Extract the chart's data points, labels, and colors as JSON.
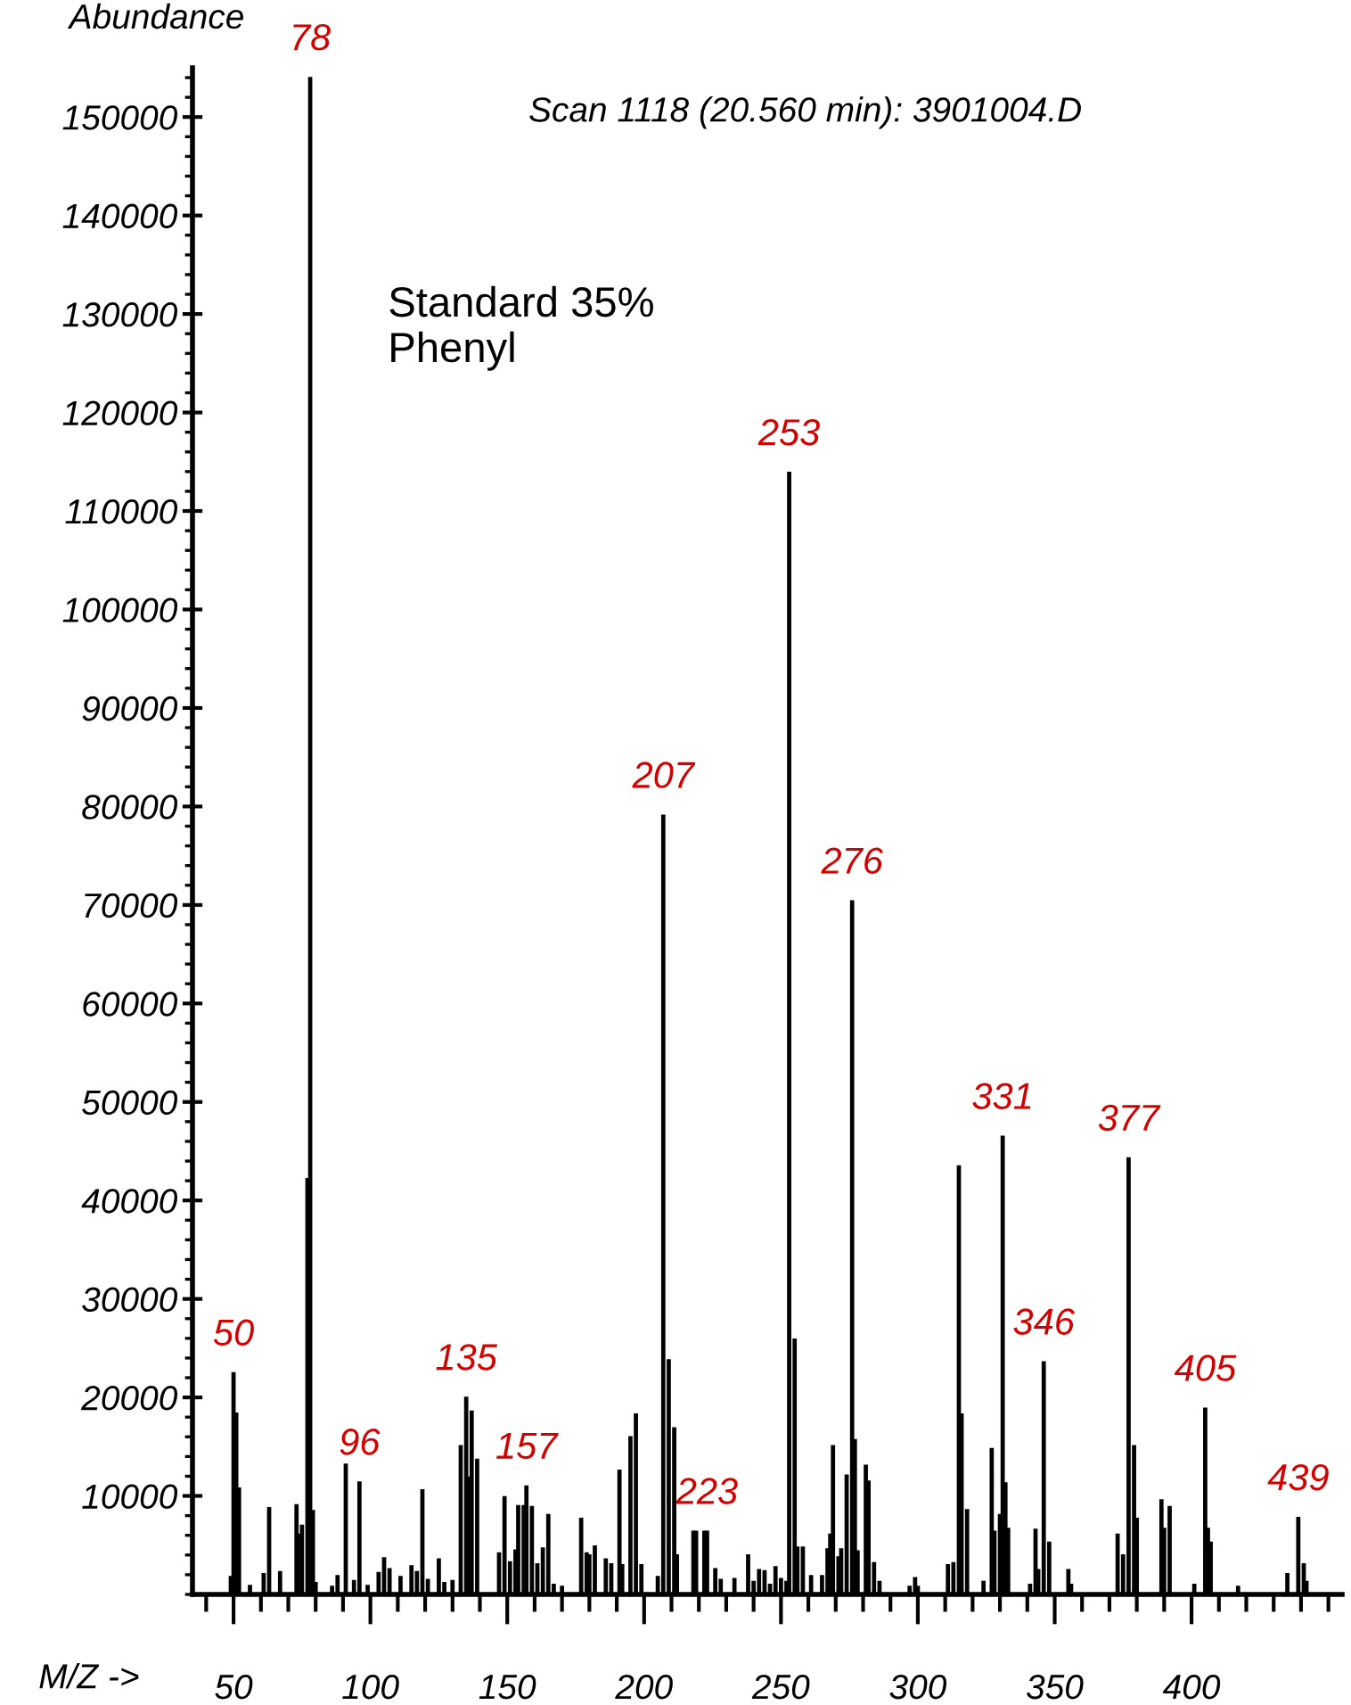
{
  "chart_data": {
    "type": "bar",
    "title": "Scan 1118 (20.560 min): 3901004.D",
    "xlabel": "M/Z ->",
    "ylabel": "Abundance",
    "x": [
      49,
      50,
      51,
      52,
      56,
      61,
      63,
      67,
      73,
      74,
      75,
      77,
      78,
      79,
      80,
      86,
      88,
      91,
      94,
      96,
      99,
      103,
      105,
      107,
      111,
      115,
      117,
      119,
      121,
      125,
      127,
      130,
      133,
      135,
      136,
      137,
      139,
      147,
      149,
      151,
      153,
      154,
      156,
      157,
      159,
      161,
      163,
      165,
      167,
      170,
      177,
      179,
      180,
      182,
      186,
      188,
      191,
      192,
      195,
      197,
      199,
      205,
      207,
      209,
      211,
      212,
      218,
      219,
      222,
      223,
      226,
      228,
      233,
      238,
      240,
      242,
      244,
      246,
      248,
      250,
      252,
      253,
      255,
      256,
      258,
      261,
      265,
      267,
      268,
      269,
      271,
      272,
      274,
      276,
      277,
      278,
      281,
      282,
      284,
      286,
      297,
      299,
      300,
      311,
      313,
      315,
      316,
      318,
      324,
      327,
      328,
      330,
      331,
      332,
      333,
      341,
      343,
      344,
      346,
      348,
      355,
      356,
      373,
      375,
      377,
      379,
      380,
      389,
      390,
      392,
      401,
      405,
      406,
      407,
      417,
      435,
      439,
      441,
      442
    ],
    "values": [
      1800,
      22500,
      18400,
      10800,
      900,
      2100,
      8800,
      2300,
      9100,
      6100,
      7000,
      42200,
      154000,
      8500,
      1200,
      800,
      1900,
      13200,
      1400,
      11400,
      900,
      2200,
      3700,
      2600,
      1800,
      2900,
      2300,
      10600,
      1500,
      3600,
      1200,
      1400,
      15100,
      20000,
      11900,
      18600,
      13700,
      4200,
      9900,
      3300,
      4500,
      9000,
      9000,
      11000,
      8900,
      3100,
      4700,
      8100,
      1000,
      800,
      7700,
      4200,
      4000,
      4900,
      3600,
      3100,
      12600,
      3000,
      16000,
      18300,
      3000,
      1800,
      79100,
      23800,
      16900,
      4000,
      6400,
      6400,
      6400,
      6400,
      2600,
      1500,
      1600,
      4000,
      1300,
      2500,
      2400,
      1000,
      2800,
      1600,
      1300,
      113900,
      25900,
      4800,
      4800,
      1900,
      1900,
      4600,
      6100,
      15100,
      3800,
      4600,
      12100,
      70400,
      15700,
      4400,
      13100,
      11500,
      3200,
      1300,
      800,
      1700,
      800,
      3000,
      3200,
      43500,
      18300,
      8600,
      1300,
      14800,
      6400,
      8100,
      46500,
      11300,
      6700,
      1000,
      6600,
      2500,
      23600,
      5300,
      2500,
      1000,
      6100,
      4000,
      44300,
      15100,
      7700,
      9600,
      6700,
      8900,
      1000,
      18900,
      6700,
      5300,
      800,
      2100,
      7800,
      3100,
      1300
    ],
    "color": "#000000",
    "xlim": [
      35,
      455
    ],
    "ylim": [
      0,
      155000
    ],
    "xticks": [
      50,
      100,
      150,
      200,
      250,
      300,
      350,
      400
    ],
    "yticks": [
      10000,
      20000,
      30000,
      40000,
      50000,
      60000,
      70000,
      80000,
      90000,
      100000,
      110000,
      120000,
      130000,
      140000,
      150000
    ],
    "grid": false,
    "annotations": [
      "Standard 35%\nPhenyl",
      {
        "text": "50",
        "x": 50,
        "y": 22500
      },
      {
        "text": "78",
        "x": 78,
        "y": 154000
      },
      {
        "text": "96",
        "x": 96,
        "y": 11400
      },
      {
        "text": "135",
        "x": 135,
        "y": 20000
      },
      {
        "text": "157",
        "x": 157,
        "y": 11000
      },
      {
        "text": "207",
        "x": 207,
        "y": 79100
      },
      {
        "text": "223",
        "x": 223,
        "y": 6400
      },
      {
        "text": "253",
        "x": 253,
        "y": 113900
      },
      {
        "text": "276",
        "x": 276,
        "y": 70400
      },
      {
        "text": "331",
        "x": 331,
        "y": 46500
      },
      {
        "text": "346",
        "x": 346,
        "y": 23600
      },
      {
        "text": "377",
        "x": 377,
        "y": 44300
      },
      {
        "text": "405",
        "x": 405,
        "y": 18900
      },
      {
        "text": "439",
        "x": 439,
        "y": 7800
      }
    ]
  }
}
